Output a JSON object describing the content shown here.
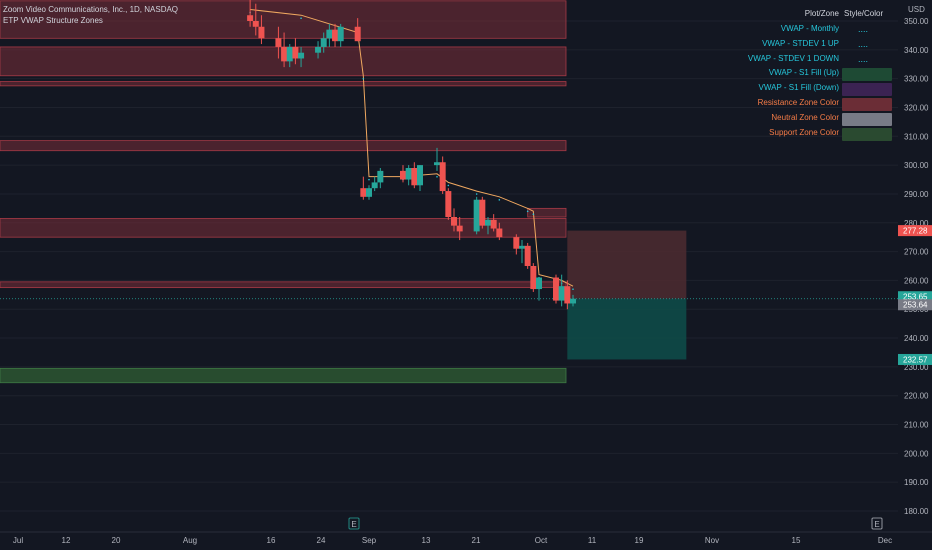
{
  "header": {
    "symbol_line": "Zoom Video Communications, Inc., 1D, NASDAQ",
    "indicator_line": "ETP VWAP Structure Zones"
  },
  "currency": "USD",
  "legend": {
    "header_plot": "Plot/Zone",
    "header_style": "Style/Color",
    "rows": [
      {
        "label": "VWAP - Monthly",
        "style": "dots",
        "color": "#26c6da",
        "label_color": "#26c6da"
      },
      {
        "label": "VWAP - STDEV 1 UP",
        "style": "dots",
        "color": "#26c6da",
        "label_color": "#26c6da"
      },
      {
        "label": "VWAP - STDEV 1 DOWN",
        "style": "dots",
        "color": "#26c6da",
        "label_color": "#26c6da"
      },
      {
        "label": "VWAP - S1 Fill (Up)",
        "style": "swatch",
        "color": "#1e4a34",
        "label_color": "#26c6da"
      },
      {
        "label": "VWAP - S1 Fill (Down)",
        "style": "swatch",
        "color": "#3b2352",
        "label_color": "#26c6da"
      },
      {
        "label": "Resistance Zone Color",
        "style": "swatch",
        "color": "#6b2d36",
        "label_color": "#f57c47"
      },
      {
        "label": "Neutral Zone Color",
        "style": "swatch",
        "color": "#787b86",
        "label_color": "#f57c47"
      },
      {
        "label": "Support Zone Color",
        "style": "swatch",
        "color": "#2a4a30",
        "label_color": "#f57c47"
      }
    ]
  },
  "colors": {
    "background": "#131722",
    "up": "#26a69a",
    "down": "#ef5350",
    "resistance_zone": "#7a2e38",
    "support_zone": "#2e5a33",
    "vwap_line": "#f0a860",
    "target_up": "#0e4a48",
    "target_down": "#4a2a30"
  },
  "chart_data": {
    "type": "candlestick",
    "y_axis": {
      "ylim": [
        175,
        355
      ],
      "ticks": [
        "350.00",
        "340.00",
        "330.00",
        "320.00",
        "310.00",
        "300.00",
        "290.00",
        "280.00",
        "270.00",
        "260.00",
        "250.00",
        "240.00",
        "230.00",
        "220.00",
        "210.00",
        "200.00",
        "190.00",
        "180.00"
      ]
    },
    "x_axis": {
      "ticks": [
        "Jul",
        "12",
        "20",
        "Aug",
        "16",
        "24",
        "Sep",
        "13",
        "21",
        "Oct",
        "11",
        "19",
        "Nov",
        "15",
        "Dec"
      ]
    },
    "price_tags": [
      {
        "value": 277.28,
        "label": "277.28",
        "kind": "resistance"
      },
      {
        "value": 253.65,
        "label": "253.65",
        "kind": "last"
      },
      {
        "value": 253.64,
        "label": "253.64",
        "kind": "neutral"
      },
      {
        "value": 232.57,
        "label": "232.57",
        "kind": "target"
      }
    ],
    "zones": [
      {
        "type": "resistance",
        "low": 344,
        "high": 357
      },
      {
        "type": "resistance",
        "low": 331,
        "high": 341
      },
      {
        "type": "resistance",
        "low": 327.5,
        "high": 329
      },
      {
        "type": "resistance",
        "low": 305,
        "high": 308.5
      },
      {
        "type": "resistance",
        "low": 282,
        "high": 285,
        "start": "2021-09-29"
      },
      {
        "type": "resistance",
        "low": 275,
        "high": 281.5
      },
      {
        "type": "resistance",
        "low": 257.5,
        "high": 259.5
      },
      {
        "type": "support",
        "low": 224.5,
        "high": 229.5
      }
    ],
    "target_box": {
      "top": 277.28,
      "entry": 253.64,
      "bottom": 232.57,
      "start": "2021-10-06",
      "end": "2021-10-27"
    },
    "candles": [
      {
        "date": "2021-08-11",
        "open": 352,
        "high": 358,
        "low": 348,
        "close": 350
      },
      {
        "date": "2021-08-12",
        "open": 350,
        "high": 356,
        "low": 345,
        "close": 348
      },
      {
        "date": "2021-08-13",
        "open": 348,
        "high": 352,
        "low": 342,
        "close": 344
      },
      {
        "date": "2021-08-16",
        "open": 344,
        "high": 348,
        "low": 337,
        "close": 341
      },
      {
        "date": "2021-08-17",
        "open": 341,
        "high": 346,
        "low": 334,
        "close": 336
      },
      {
        "date": "2021-08-18",
        "open": 336,
        "high": 342,
        "low": 334,
        "close": 341
      },
      {
        "date": "2021-08-19",
        "open": 341,
        "high": 344,
        "low": 335,
        "close": 337
      },
      {
        "date": "2021-08-20",
        "open": 337,
        "high": 341,
        "low": 334,
        "close": 339
      },
      {
        "date": "2021-08-23",
        "open": 339,
        "high": 343,
        "low": 337,
        "close": 341
      },
      {
        "date": "2021-08-24",
        "open": 341,
        "high": 346,
        "low": 339,
        "close": 344
      },
      {
        "date": "2021-08-25",
        "open": 344,
        "high": 349,
        "low": 341,
        "close": 347
      },
      {
        "date": "2021-08-26",
        "open": 347,
        "high": 349,
        "low": 341,
        "close": 343
      },
      {
        "date": "2021-08-27",
        "open": 343,
        "high": 349,
        "low": 341,
        "close": 348
      },
      {
        "date": "2021-08-30",
        "open": 348,
        "high": 351,
        "low": 343,
        "close": 343
      },
      {
        "date": "2021-08-31",
        "open": 292,
        "high": 296,
        "low": 288,
        "close": 289
      },
      {
        "date": "2021-09-01",
        "open": 289,
        "high": 293,
        "low": 288,
        "close": 292
      },
      {
        "date": "2021-09-02",
        "open": 292,
        "high": 296,
        "low": 291,
        "close": 294
      },
      {
        "date": "2021-09-03",
        "open": 294,
        "high": 299,
        "low": 292,
        "close": 298
      },
      {
        "date": "2021-09-07",
        "open": 298,
        "high": 300,
        "low": 294,
        "close": 295
      },
      {
        "date": "2021-09-08",
        "open": 295,
        "high": 300,
        "low": 293,
        "close": 299
      },
      {
        "date": "2021-09-09",
        "open": 299,
        "high": 301,
        "low": 292,
        "close": 293
      },
      {
        "date": "2021-09-10",
        "open": 293,
        "high": 300,
        "low": 291,
        "close": 300
      },
      {
        "date": "2021-09-13",
        "open": 300,
        "high": 306,
        "low": 298,
        "close": 301
      },
      {
        "date": "2021-09-14",
        "open": 301,
        "high": 303,
        "low": 290,
        "close": 291
      },
      {
        "date": "2021-09-15",
        "open": 291,
        "high": 292,
        "low": 281,
        "close": 282
      },
      {
        "date": "2021-09-16",
        "open": 282,
        "high": 285,
        "low": 277,
        "close": 279
      },
      {
        "date": "2021-09-17",
        "open": 279,
        "high": 282,
        "low": 274,
        "close": 277
      },
      {
        "date": "2021-09-20",
        "open": 277,
        "high": 289,
        "low": 276,
        "close": 288
      },
      {
        "date": "2021-09-21",
        "open": 288,
        "high": 289,
        "low": 278,
        "close": 279
      },
      {
        "date": "2021-09-22",
        "open": 279,
        "high": 282,
        "low": 276,
        "close": 281
      },
      {
        "date": "2021-09-23",
        "open": 281,
        "high": 283,
        "low": 277,
        "close": 278
      },
      {
        "date": "2021-09-24",
        "open": 278,
        "high": 280,
        "low": 274,
        "close": 275
      },
      {
        "date": "2021-09-27",
        "open": 275,
        "high": 276,
        "low": 269,
        "close": 271
      },
      {
        "date": "2021-09-28",
        "open": 271,
        "high": 274,
        "low": 266,
        "close": 272
      },
      {
        "date": "2021-09-29",
        "open": 272,
        "high": 273,
        "low": 264,
        "close": 265
      },
      {
        "date": "2021-09-30",
        "open": 265,
        "high": 266,
        "low": 256,
        "close": 257
      },
      {
        "date": "2021-10-01",
        "open": 257,
        "high": 261,
        "low": 253,
        "close": 261
      },
      {
        "date": "2021-10-04",
        "open": 261,
        "high": 262,
        "low": 252,
        "close": 253
      },
      {
        "date": "2021-10-05",
        "open": 253,
        "high": 262,
        "low": 251,
        "close": 258
      },
      {
        "date": "2021-10-06",
        "open": 258,
        "high": 260,
        "low": 250,
        "close": 252
      },
      {
        "date": "2021-10-07",
        "open": 252,
        "high": 255,
        "low": 251,
        "close": 253.65
      }
    ],
    "vwap": [
      {
        "date": "2021-08-11",
        "value": 354
      },
      {
        "date": "2021-08-20",
        "value": 352
      },
      {
        "date": "2021-08-30",
        "value": 346
      },
      {
        "date": "2021-08-31",
        "value": 331
      },
      {
        "date": "2021-09-01",
        "value": 296
      },
      {
        "date": "2021-09-07",
        "value": 296
      },
      {
        "date": "2021-09-13",
        "value": 297
      },
      {
        "date": "2021-09-15",
        "value": 294
      },
      {
        "date": "2021-09-20",
        "value": 291
      },
      {
        "date": "2021-09-24",
        "value": 289
      },
      {
        "date": "2021-09-29",
        "value": 285
      },
      {
        "date": "2021-09-30",
        "value": 284
      },
      {
        "date": "2021-10-01",
        "value": 262
      },
      {
        "date": "2021-10-05",
        "value": 260
      },
      {
        "date": "2021-10-07",
        "value": 258
      }
    ]
  }
}
